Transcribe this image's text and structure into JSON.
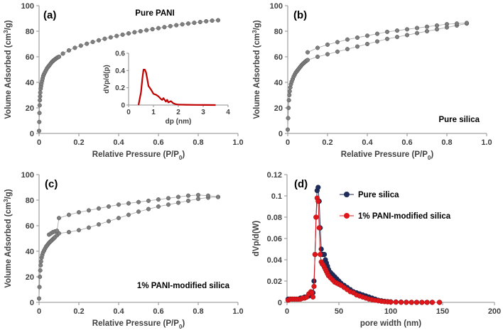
{
  "colors": {
    "point": "#7f7f7f",
    "line": "#a6a6a6",
    "inset": "#c00000",
    "pure_silica": "#1f2d5a",
    "pani": "#e0161b"
  },
  "chart_data": [
    {
      "type": "scatter",
      "panel_label": "(a)",
      "annotation": "Pure PANI",
      "xlabel": "Relative Pressure (P/P",
      "xlabel_sub": "0",
      "xlabel_end": ")",
      "ylabel": "Volume Adsorbed (cm",
      "ylabel_sup": "3",
      "ylabel_end": "/g)",
      "xlim": [
        0,
        1.0
      ],
      "ylim": [
        0,
        100
      ],
      "x_ticks": [
        "0",
        "0.2",
        "0.4",
        "0.6",
        "0.8",
        "1.0"
      ],
      "y_ticks": [
        "0",
        "20",
        "40",
        "60",
        "80",
        "100"
      ],
      "series": [
        {
          "x": [
            0.0,
            0.001,
            0.002,
            0.003,
            0.004,
            0.005,
            0.006,
            0.008,
            0.01,
            0.012,
            0.015,
            0.018,
            0.021,
            0.025,
            0.03,
            0.035,
            0.04,
            0.045,
            0.05,
            0.055,
            0.06,
            0.065,
            0.07,
            0.075,
            0.08,
            0.085,
            0.09,
            0.095,
            0.1,
            0.12,
            0.15,
            0.18,
            0.21,
            0.24,
            0.27,
            0.3,
            0.33,
            0.36,
            0.39,
            0.42,
            0.45,
            0.48,
            0.51,
            0.54,
            0.57,
            0.6,
            0.63,
            0.66,
            0.69,
            0.72,
            0.75,
            0.78,
            0.81,
            0.84,
            0.87,
            0.9
          ],
          "y": [
            2,
            9,
            16,
            22,
            26,
            29,
            32,
            35,
            37,
            39,
            41,
            43,
            45,
            46.5,
            48,
            49.5,
            51,
            52,
            53,
            54,
            55,
            56,
            56.7,
            57.4,
            58,
            58.6,
            59.2,
            59.6,
            60,
            62.5,
            65,
            67,
            68.7,
            70.2,
            71.6,
            72.9,
            74.1,
            75.2,
            76.3,
            77.3,
            78.3,
            79.2,
            80,
            80.8,
            81.6,
            82.4,
            83.2,
            84,
            84.7,
            85.4,
            86,
            86.6,
            87.2,
            87.8,
            88.3,
            88.6
          ]
        }
      ],
      "inset": {
        "type": "line",
        "xlabel": "dp (nm)",
        "ylabel": "dVp/d(p)",
        "xlim": [
          0,
          4
        ],
        "ylim": [
          0,
          0.6
        ],
        "x_ticks": [
          "0",
          "1",
          "2",
          "3",
          "4"
        ],
        "y_ticks": [
          "0",
          "0.2",
          "0.4",
          "0.6"
        ],
        "x": [
          0.4,
          0.5,
          0.55,
          0.6,
          0.65,
          0.7,
          0.75,
          0.8,
          0.9,
          1.0,
          1.1,
          1.2,
          1.3,
          1.35,
          1.4,
          1.5,
          1.55,
          1.6,
          1.7,
          1.8,
          1.9,
          2.0,
          2.3,
          2.7,
          3.1,
          3.5
        ],
        "y": [
          0.0,
          0.15,
          0.3,
          0.41,
          0.41,
          0.38,
          0.3,
          0.22,
          0.18,
          0.13,
          0.12,
          0.1,
          0.07,
          0.06,
          0.08,
          0.04,
          0.06,
          0.03,
          0.045,
          0.02,
          0.01,
          0.005,
          0.003,
          0.002,
          0.001,
          0.0
        ]
      }
    },
    {
      "type": "scatter",
      "panel_label": "(b)",
      "annotation": "Pure silica",
      "xlabel": "Relative Pressure (P/P",
      "xlabel_sub": "0",
      "xlabel_end": ")",
      "ylabel": "Volume Adsorbed (cm",
      "ylabel_sup": "3",
      "ylabel_end": "/g)",
      "xlim": [
        0,
        1.0
      ],
      "ylim": [
        0,
        100
      ],
      "x_ticks": [
        "0",
        "0.2",
        "0.4",
        "0.6",
        "0.8",
        "1.0"
      ],
      "y_ticks": [
        "0",
        "20",
        "40",
        "60",
        "80",
        "100"
      ],
      "series": [
        {
          "x": [
            0.0,
            0.002,
            0.004,
            0.006,
            0.008,
            0.01,
            0.013,
            0.016,
            0.02,
            0.025,
            0.03,
            0.035,
            0.04,
            0.045,
            0.05,
            0.055,
            0.06,
            0.065,
            0.07,
            0.075,
            0.08,
            0.085,
            0.09,
            0.095,
            0.1,
            0.15,
            0.2,
            0.25,
            0.3,
            0.35,
            0.4,
            0.45,
            0.5,
            0.55,
            0.6,
            0.65,
            0.7,
            0.75,
            0.8,
            0.85,
            0.9
          ],
          "y": [
            3,
            12,
            20,
            26,
            30,
            33,
            36,
            38.5,
            40.5,
            42.5,
            44.5,
            46,
            47.5,
            48.5,
            49.5,
            50.5,
            51.5,
            52.5,
            53.5,
            54.3,
            55,
            55.7,
            56.4,
            57,
            57.5,
            60,
            62,
            64,
            66,
            68,
            70,
            72,
            74,
            75.5,
            77,
            78.5,
            80,
            81.5,
            83,
            84.5,
            86
          ]
        },
        {
          "x": [
            0.1,
            0.15,
            0.2,
            0.25,
            0.3,
            0.35,
            0.4,
            0.45,
            0.5,
            0.55,
            0.6,
            0.65,
            0.7,
            0.75,
            0.8,
            0.85,
            0.9
          ],
          "y": [
            63.5,
            67,
            69.5,
            71.5,
            73.5,
            75,
            76.5,
            78,
            79.5,
            80.5,
            81.5,
            82.5,
            83.5,
            84.5,
            85.5,
            86,
            86.5
          ]
        }
      ]
    },
    {
      "type": "scatter",
      "panel_label": "(c)",
      "annotation": "1% PANI-modified silica",
      "xlabel": "Relative Pressure (P/P",
      "xlabel_sub": "0",
      "xlabel_end": ")",
      "ylabel": "Volume Adsorbed (cm",
      "ylabel_sup": "3",
      "ylabel_end": "/g)",
      "xlim": [
        0,
        1.0
      ],
      "ylim": [
        0,
        100
      ],
      "x_ticks": [
        "0",
        "0.2",
        "0.4",
        "0.6",
        "0.8",
        "1.0"
      ],
      "y_ticks": [
        "0",
        "20",
        "40",
        "60",
        "80",
        "100"
      ],
      "series": [
        {
          "x": [
            0.0,
            0.002,
            0.004,
            0.006,
            0.008,
            0.01,
            0.013,
            0.016,
            0.02,
            0.025,
            0.03,
            0.035,
            0.04,
            0.045,
            0.05,
            0.055,
            0.06,
            0.065,
            0.07,
            0.075,
            0.08,
            0.09,
            0.1,
            0.15,
            0.2,
            0.25,
            0.3,
            0.35,
            0.4,
            0.45,
            0.5,
            0.55,
            0.6,
            0.65,
            0.7,
            0.75,
            0.8,
            0.85,
            0.9
          ],
          "y": [
            3,
            12,
            20,
            25,
            29,
            32,
            35,
            37,
            39,
            40.5,
            42,
            43.5,
            44.5,
            45.5,
            46.5,
            47.3,
            48,
            48.8,
            49.5,
            50.2,
            51,
            52.5,
            54,
            55,
            56.5,
            58.5,
            61,
            63.5,
            66,
            68.5,
            71,
            73,
            75,
            76.5,
            78,
            79.5,
            81,
            82,
            82.5
          ]
        },
        {
          "x": [
            0.05,
            0.06,
            0.07,
            0.08,
            0.09,
            0.1,
            0.15,
            0.2,
            0.25,
            0.3,
            0.35,
            0.4,
            0.45,
            0.5,
            0.55,
            0.6,
            0.65,
            0.7,
            0.75,
            0.8,
            0.85,
            0.9
          ],
          "y": [
            53,
            54,
            55,
            55.5,
            56,
            66,
            68.5,
            70.5,
            72,
            73.5,
            75,
            76.5,
            77.5,
            78.5,
            79.5,
            80.5,
            81.5,
            82.5,
            83.5,
            84,
            83.5,
            82.5
          ]
        }
      ]
    },
    {
      "type": "line",
      "panel_label": "(d)",
      "xlabel": "pore width (nm)",
      "ylabel": "dVp/d(W)",
      "xlim": [
        0,
        200
      ],
      "ylim": [
        0,
        0.12
      ],
      "x_ticks": [
        "0",
        "50",
        "100",
        "150",
        "200"
      ],
      "y_ticks": [
        "0",
        "0.02",
        "0.04",
        "0.06",
        "0.08",
        "0.1",
        "0.12"
      ],
      "legend_position": "top-right",
      "series": [
        {
          "name": "Pure silica",
          "x": [
            1,
            3,
            5,
            7,
            9,
            11,
            13,
            15,
            17,
            19,
            21,
            23,
            25,
            26,
            27,
            28,
            29,
            30,
            31,
            32,
            33,
            34,
            35,
            36,
            37,
            38,
            39,
            40,
            42,
            44,
            46,
            48,
            50,
            52,
            55,
            58,
            61,
            64,
            67,
            70,
            73,
            76,
            79,
            82,
            85,
            88,
            91,
            94,
            97,
            100,
            105,
            110,
            115,
            120,
            125,
            130,
            135,
            140,
            147
          ],
          "y": [
            0.003,
            0.003,
            0.003,
            0.003,
            0.003,
            0.003,
            0.004,
            0.004,
            0.005,
            0.005,
            0.006,
            0.007,
            0.009,
            0.02,
            0.045,
            0.08,
            0.105,
            0.108,
            0.095,
            0.07,
            0.05,
            0.045,
            0.045,
            0.045,
            0.04,
            0.037,
            0.034,
            0.031,
            0.028,
            0.026,
            0.024,
            0.022,
            0.02,
            0.018,
            0.016,
            0.014,
            0.012,
            0.01,
            0.009,
            0.008,
            0.007,
            0.006,
            0.005,
            0.004,
            0.003,
            0.002,
            0.0015,
            0.001,
            0.0007,
            0.0005,
            0.0003,
            0.0002,
            0.0001,
            0.0,
            0.0,
            0.0,
            0.0,
            0.0,
            0.0
          ]
        },
        {
          "name": "1% PANI-modified silica",
          "x": [
            1,
            3,
            5,
            7,
            9,
            11,
            13,
            15,
            17,
            19,
            21,
            23,
            24,
            25,
            26,
            27,
            28,
            29,
            30,
            31,
            32,
            33,
            34,
            35,
            36,
            37,
            38,
            39,
            40,
            42,
            44,
            46,
            48,
            50,
            52,
            55,
            58,
            61,
            64,
            67,
            70,
            73,
            76,
            79,
            82,
            85,
            88,
            91,
            94,
            97,
            100,
            105,
            110,
            115,
            120,
            125,
            130,
            135,
            140,
            147
          ],
          "y": [
            0.002,
            0.003,
            0.003,
            0.003,
            0.003,
            0.003,
            0.003,
            0.004,
            0.004,
            0.005,
            0.008,
            0.01,
            0.009,
            0.005,
            0.015,
            0.045,
            0.08,
            0.098,
            0.095,
            0.07,
            0.045,
            0.038,
            0.036,
            0.035,
            0.033,
            0.031,
            0.029,
            0.027,
            0.025,
            0.023,
            0.021,
            0.019,
            0.018,
            0.017,
            0.016,
            0.014,
            0.012,
            0.01,
            0.009,
            0.007,
            0.006,
            0.005,
            0.004,
            0.003,
            0.0025,
            0.002,
            0.0015,
            0.001,
            0.0007,
            0.0005,
            0.0003,
            0.0002,
            0.0001,
            0.0,
            0.0,
            0.0,
            0.0,
            0.0,
            0.0,
            0.0
          ]
        }
      ]
    }
  ]
}
